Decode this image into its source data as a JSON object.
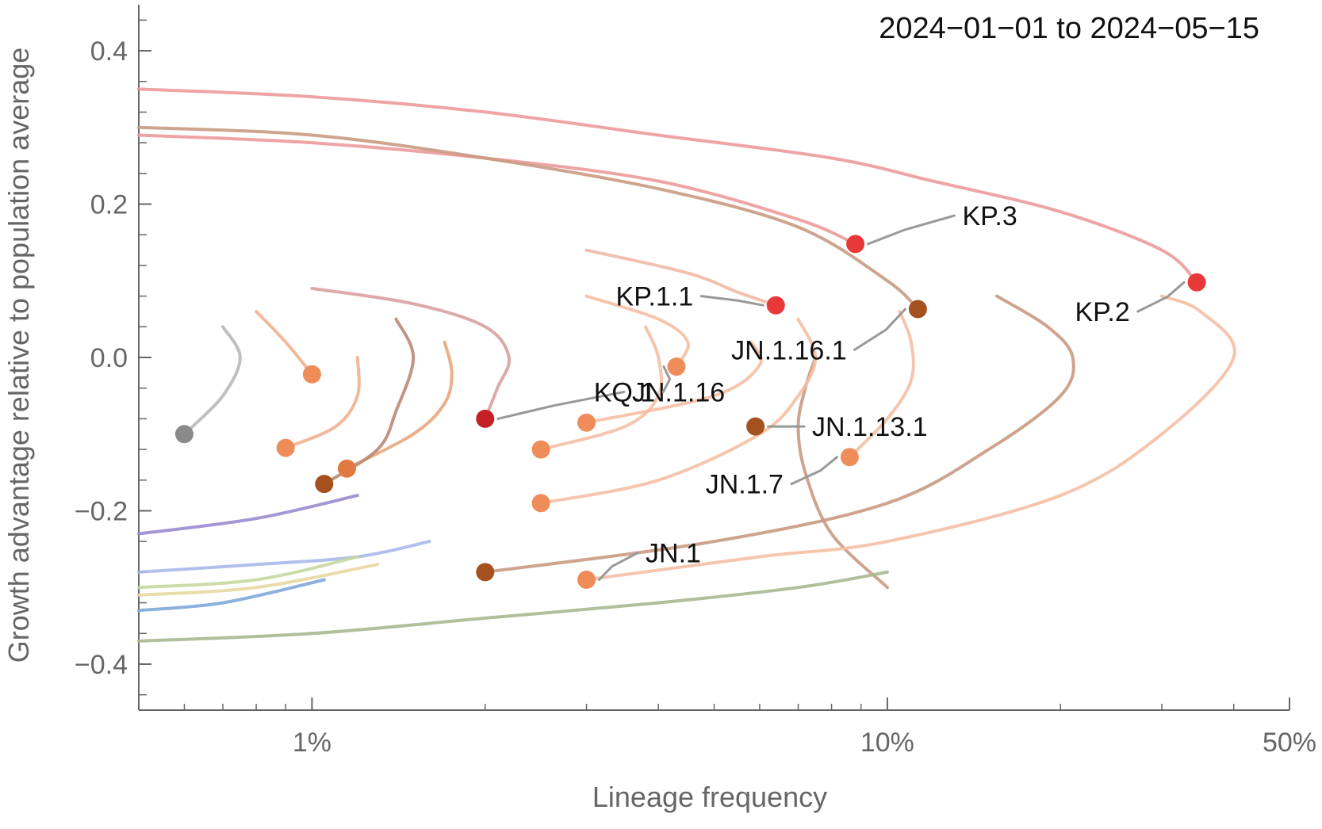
{
  "chart_data": {
    "type": "line",
    "date_range_label": "2024−01−01 to 2024−05−15",
    "xlabel": "Lineage frequency",
    "ylabel": "Growth advantage relative to population average",
    "x_scale": "log",
    "xlim": [
      0.005,
      0.5
    ],
    "ylim": [
      -0.46,
      0.46
    ],
    "x_ticks": [
      {
        "value": 0.01,
        "label": "1%"
      },
      {
        "value": 0.1,
        "label": "10%"
      },
      {
        "value": 0.5,
        "label": "50%"
      }
    ],
    "y_ticks": [
      {
        "value": 0.4,
        "label": "0.4"
      },
      {
        "value": 0.2,
        "label": "0.2"
      },
      {
        "value": 0.0,
        "label": "0.0"
      },
      {
        "value": -0.2,
        "label": "−0.2"
      },
      {
        "value": -0.4,
        "label": "−0.4"
      }
    ],
    "grid": false,
    "legend": "none",
    "series": [
      {
        "name": "KP.2",
        "color": "#e8393a",
        "trace_color": "#ec9a9a",
        "trace": [
          [
            0.005,
            0.35
          ],
          [
            0.01,
            0.34
          ],
          [
            0.02,
            0.32
          ],
          [
            0.04,
            0.29
          ],
          [
            0.08,
            0.26
          ],
          [
            0.12,
            0.23
          ],
          [
            0.2,
            0.19
          ],
          [
            0.3,
            0.14
          ],
          [
            0.345,
            0.098
          ]
        ],
        "current": [
          0.345,
          0.098
        ]
      },
      {
        "name": "KP.3",
        "color": "#e8393a",
        "trace_color": "#ec9a9a",
        "trace": [
          [
            0.005,
            0.29
          ],
          [
            0.01,
            0.28
          ],
          [
            0.02,
            0.26
          ],
          [
            0.04,
            0.23
          ],
          [
            0.07,
            0.18
          ],
          [
            0.088,
            0.148
          ]
        ],
        "current": [
          0.088,
          0.148
        ]
      },
      {
        "name": "KP.1.1",
        "color": "#e8393a",
        "trace_color": "#f2b8a6",
        "trace": [
          [
            0.03,
            0.14
          ],
          [
            0.045,
            0.11
          ],
          [
            0.055,
            0.085
          ],
          [
            0.064,
            0.068
          ]
        ],
        "current": [
          0.064,
          0.068
        ]
      },
      {
        "name": "JN.1.16.1",
        "color": "#a5501f",
        "trace_color": "#c99a82",
        "trace": [
          [
            0.005,
            0.3
          ],
          [
            0.01,
            0.29
          ],
          [
            0.02,
            0.26
          ],
          [
            0.04,
            0.22
          ],
          [
            0.07,
            0.17
          ],
          [
            0.1,
            0.1
          ],
          [
            0.113,
            0.063
          ]
        ],
        "current": [
          0.113,
          0.063
        ]
      },
      {
        "name": "JN.1.16",
        "color": "#c42026",
        "trace_color": "#d9a0a0",
        "trace": [
          [
            0.01,
            0.09
          ],
          [
            0.015,
            0.07
          ],
          [
            0.02,
            0.04
          ],
          [
            0.022,
            0.0
          ],
          [
            0.021,
            -0.04
          ],
          [
            0.02,
            -0.08
          ]
        ],
        "current": [
          0.02,
          -0.08
        ]
      },
      {
        "name": "KQ.1",
        "color": "#ee8c5a",
        "trace_color": "#f4bfa4",
        "trace": [
          [
            0.03,
            0.08
          ],
          [
            0.04,
            0.05
          ],
          [
            0.045,
            0.02
          ],
          [
            0.043,
            -0.012
          ]
        ],
        "current": [
          0.043,
          -0.012
        ]
      },
      {
        "name": "JN.1.13.1",
        "color": "#a5501f",
        "trace_color": "#c99a82",
        "trace": [
          [
            0.1,
            -0.3
          ],
          [
            0.08,
            -0.23
          ],
          [
            0.072,
            -0.15
          ],
          [
            0.07,
            -0.09
          ],
          [
            0.072,
            -0.04
          ],
          [
            0.075,
            0.0
          ]
        ],
        "current": [
          0.059,
          -0.09
        ]
      },
      {
        "name": "JN.1.7",
        "color": "#ee8c5a",
        "trace_color": "#f4bfa4",
        "trace": [
          [
            0.086,
            -0.13
          ],
          [
            0.1,
            -0.08
          ],
          [
            0.11,
            -0.03
          ],
          [
            0.11,
            0.02
          ],
          [
            0.105,
            0.06
          ]
        ],
        "current": [
          0.086,
          -0.13
        ]
      },
      {
        "name": "JN.1",
        "color": "#ee8c5a",
        "trace_color": "#f4bfa4",
        "trace": [
          [
            0.03,
            -0.29
          ],
          [
            0.06,
            -0.26
          ],
          [
            0.1,
            -0.24
          ],
          [
            0.2,
            -0.18
          ],
          [
            0.3,
            -0.1
          ],
          [
            0.4,
            0.0
          ],
          [
            0.35,
            0.06
          ],
          [
            0.3,
            0.08
          ]
        ],
        "current": [
          0.03,
          -0.29
        ]
      },
      {
        "name": "",
        "color": "#a5501f",
        "trace_color": "#c99a82",
        "trace": [
          [
            0.02,
            -0.28
          ],
          [
            0.05,
            -0.24
          ],
          [
            0.1,
            -0.19
          ],
          [
            0.15,
            -0.12
          ],
          [
            0.2,
            -0.05
          ],
          [
            0.21,
            0.0
          ],
          [
            0.19,
            0.04
          ],
          [
            0.155,
            0.08
          ]
        ],
        "current": [
          0.02,
          -0.28
        ]
      },
      {
        "name": "",
        "color": "#ee8c5a",
        "trace_color": "#f4bfa4",
        "trace": [
          [
            0.025,
            -0.19
          ],
          [
            0.04,
            -0.16
          ],
          [
            0.06,
            -0.1
          ],
          [
            0.07,
            -0.05
          ],
          [
            0.075,
            0.0
          ],
          [
            0.07,
            0.05
          ]
        ],
        "current": [
          0.025,
          -0.19
        ]
      },
      {
        "name": "",
        "color": "#ee8c5a",
        "trace_color": "#f4bfa4",
        "trace": [
          [
            0.03,
            -0.085
          ],
          [
            0.05,
            -0.05
          ],
          [
            0.06,
            -0.01
          ],
          [
            0.058,
            0.02
          ]
        ],
        "current": [
          0.03,
          -0.085
        ]
      },
      {
        "name": "",
        "color": "#ee8c5a",
        "trace_color": "#f4bfa4",
        "trace": [
          [
            0.025,
            -0.12
          ],
          [
            0.035,
            -0.09
          ],
          [
            0.04,
            -0.05
          ],
          [
            0.04,
            0.0
          ],
          [
            0.038,
            0.04
          ]
        ],
        "current": [
          0.025,
          -0.12
        ]
      },
      {
        "name": "",
        "color": "#e07a40",
        "trace_color": "#e8a780",
        "trace": [
          [
            0.0115,
            -0.145
          ],
          [
            0.015,
            -0.1
          ],
          [
            0.017,
            -0.06
          ],
          [
            0.0175,
            -0.02
          ],
          [
            0.017,
            0.02
          ]
        ],
        "current": [
          0.0115,
          -0.145
        ]
      },
      {
        "name": "",
        "color": "#a5501f",
        "trace_color": "#b88a75",
        "trace": [
          [
            0.0105,
            -0.165
          ],
          [
            0.013,
            -0.12
          ],
          [
            0.014,
            -0.07
          ],
          [
            0.015,
            0.0
          ],
          [
            0.014,
            0.05
          ]
        ],
        "current": [
          0.0105,
          -0.165
        ]
      },
      {
        "name": "",
        "color": "#ee8c5a",
        "trace_color": "#f0b090",
        "trace": [
          [
            0.009,
            -0.118
          ],
          [
            0.011,
            -0.09
          ],
          [
            0.012,
            -0.05
          ],
          [
            0.012,
            0.0
          ]
        ],
        "current": [
          0.009,
          -0.118
        ]
      },
      {
        "name": "",
        "color": "#ee8c5a",
        "trace_color": "#f0b090",
        "trace": [
          [
            0.01,
            -0.022
          ],
          [
            0.009,
            0.02
          ],
          [
            0.008,
            0.06
          ]
        ],
        "current": [
          0.01,
          -0.022
        ]
      },
      {
        "name": "",
        "color": "#8a8a8a",
        "trace_color": "#b8b8b8",
        "trace": [
          [
            0.006,
            -0.1
          ],
          [
            0.007,
            -0.05
          ],
          [
            0.0075,
            0.0
          ],
          [
            0.007,
            0.04
          ]
        ],
        "current": [
          0.006,
          -0.1
        ]
      },
      {
        "name": "",
        "color": "#8aa070",
        "trace_color": "#a8b890",
        "trace": [
          [
            0.005,
            -0.37
          ],
          [
            0.01,
            -0.36
          ],
          [
            0.02,
            -0.34
          ],
          [
            0.04,
            -0.32
          ],
          [
            0.07,
            -0.3
          ],
          [
            0.1,
            -0.28
          ]
        ],
        "current": null
      },
      {
        "name": "",
        "color": "#a9b9e8",
        "trace_color": "#a9b9e8",
        "trace": [
          [
            0.005,
            -0.28
          ],
          [
            0.008,
            -0.27
          ],
          [
            0.012,
            -0.26
          ],
          [
            0.016,
            -0.24
          ]
        ],
        "current": null
      },
      {
        "name": "",
        "color": "#9a8ad0",
        "trace_color": "#9a8ad0",
        "trace": [
          [
            0.005,
            -0.23
          ],
          [
            0.008,
            -0.21
          ],
          [
            0.012,
            -0.18
          ]
        ],
        "current": null
      },
      {
        "name": "",
        "color": "#c5d8a0",
        "trace_color": "#c5d8a0",
        "trace": [
          [
            0.005,
            -0.3
          ],
          [
            0.008,
            -0.29
          ],
          [
            0.012,
            -0.26
          ]
        ],
        "current": null
      },
      {
        "name": "",
        "color": "#e8d8a0",
        "trace_color": "#e8d8a0",
        "trace": [
          [
            0.005,
            -0.31
          ],
          [
            0.008,
            -0.3
          ],
          [
            0.013,
            -0.27
          ]
        ],
        "current": null
      },
      {
        "name": "",
        "color": "#80a8d8",
        "trace_color": "#80a8d8",
        "trace": [
          [
            0.005,
            -0.33
          ],
          [
            0.007,
            -0.32
          ],
          [
            0.0105,
            -0.29
          ]
        ],
        "current": null
      }
    ],
    "labels": [
      {
        "text": "KP.3",
        "series": "KP.3",
        "label_at": [
          0.135,
          0.185
        ]
      },
      {
        "text": "KP.2",
        "series": "KP.2",
        "label_at": [
          0.264,
          0.06
        ]
      },
      {
        "text": "KP.1.1",
        "series": "KP.1.1",
        "label_at": [
          0.046,
          0.08
        ]
      },
      {
        "text": "JN.1.16.1",
        "series": "JN.1.16.1",
        "label_at": [
          0.085,
          0.01
        ]
      },
      {
        "text": "JN.1.16",
        "series": "JN.1.16",
        "label_at": [
          0.036,
          -0.045
        ]
      },
      {
        "text": "KQ.1",
        "series": "KQ.1",
        "label_at": [
          0.0395,
          -0.045
        ]
      },
      {
        "text": "JN.1.13.1",
        "series": "JN.1.13.1",
        "label_at": [
          0.074,
          -0.09
        ]
      },
      {
        "text": "JN.1.7",
        "series": "JN.1.7",
        "label_at": [
          0.066,
          -0.165
        ]
      },
      {
        "text": "JN.1",
        "series": "JN.1",
        "label_at": [
          0.038,
          -0.255
        ]
      }
    ]
  }
}
